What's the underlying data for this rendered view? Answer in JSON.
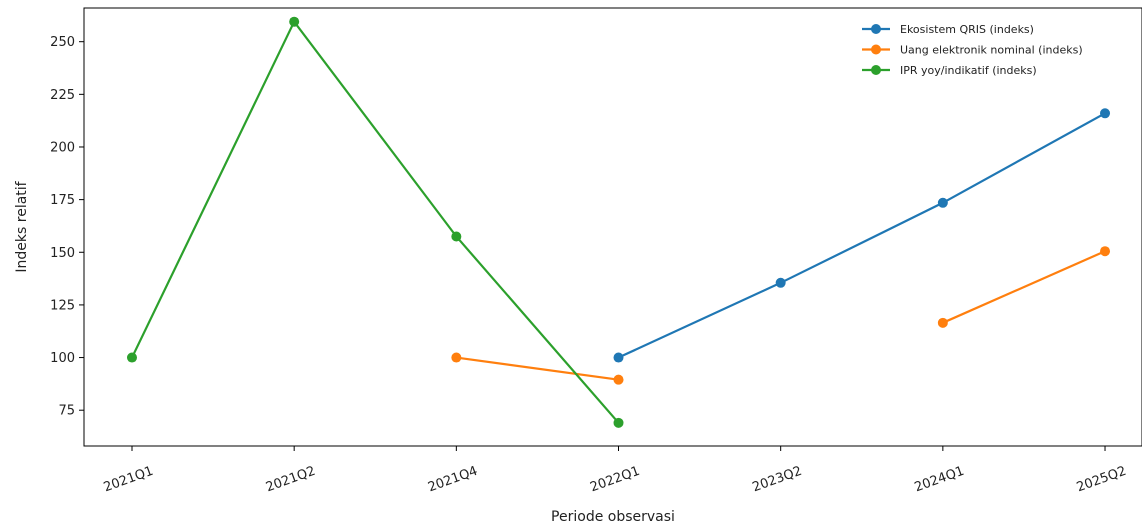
{
  "chart_data": {
    "type": "line",
    "title": "",
    "xlabel": "Periode observasi",
    "ylabel": "Indeks relatif",
    "categories": [
      "2021Q1",
      "2021Q2",
      "2021Q4",
      "2022Q1",
      "2023Q2",
      "2024Q1",
      "2025Q2"
    ],
    "yticks": [
      75,
      100,
      125,
      150,
      175,
      200,
      225,
      250
    ],
    "ylim": [
      58,
      266
    ],
    "grid": false,
    "legend_position": "top-right",
    "series": [
      {
        "name": "Ekosistem QRIS (indeks)",
        "color": "#1f77b4",
        "values": [
          null,
          null,
          null,
          100,
          135.5,
          173.5,
          216
        ]
      },
      {
        "name": "Uang elektronik nominal (indeks)",
        "color": "#ff7f0e",
        "segments": [
          [
            [
              2,
              100
            ],
            [
              3,
              89.5
            ]
          ],
          [
            [
              5,
              116.5
            ],
            [
              6,
              150.5
            ]
          ]
        ],
        "values": [
          null,
          null,
          100,
          89.5,
          null,
          116.5,
          150.5
        ]
      },
      {
        "name": "IPR yoy/indikatif (indeks)",
        "color": "#2ca02c",
        "values": [
          100,
          259.5,
          157.5,
          69,
          null,
          null,
          null
        ]
      }
    ]
  }
}
